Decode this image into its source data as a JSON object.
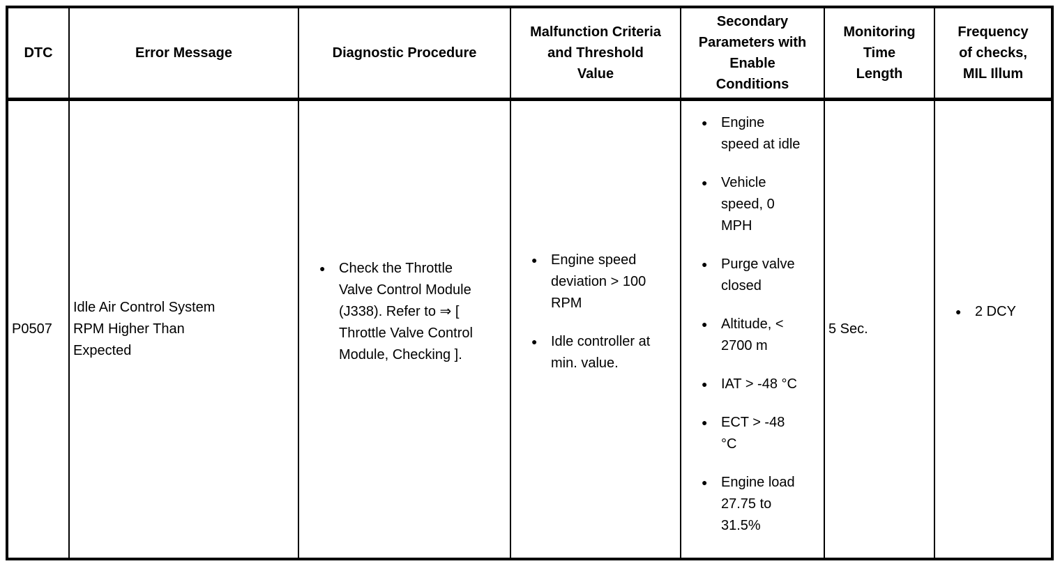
{
  "table": {
    "bullet": "●",
    "headers": {
      "dtc": "DTC",
      "error_message": "Error Message",
      "diagnostic_procedure": "Diagnostic Procedure",
      "malfunction_criteria": "Malfunction Criteria\nand Threshold\nValue",
      "secondary_parameters": "Secondary\nParameters with\nEnable\nConditions",
      "monitoring_time": "Monitoring\nTime\nLength",
      "frequency": "Frequency\nof checks,\nMIL Illum"
    },
    "row": {
      "dtc": "P0507",
      "error_message": "Idle Air Control System\nRPM Higher Than\nExpected",
      "diagnostic_procedure": [
        "Check the Throttle\nValve Control Module\n(J338). Refer to ⇒ [\nThrottle Valve Control\nModule, Checking ]."
      ],
      "malfunction_criteria": [
        "Engine speed\ndeviation > 100\nRPM",
        "Idle controller at\nmin. value."
      ],
      "secondary_parameters": [
        "Engine\nspeed at idle",
        "Vehicle\nspeed, 0\nMPH",
        "Purge valve\nclosed",
        "Altitude, <\n2700 m",
        "IAT > -48 °C",
        "ECT > -48\n°C",
        "Engine load\n27.75 to\n31.5%"
      ],
      "monitoring_time": "5 Sec.",
      "frequency": [
        "2 DCY"
      ]
    }
  }
}
